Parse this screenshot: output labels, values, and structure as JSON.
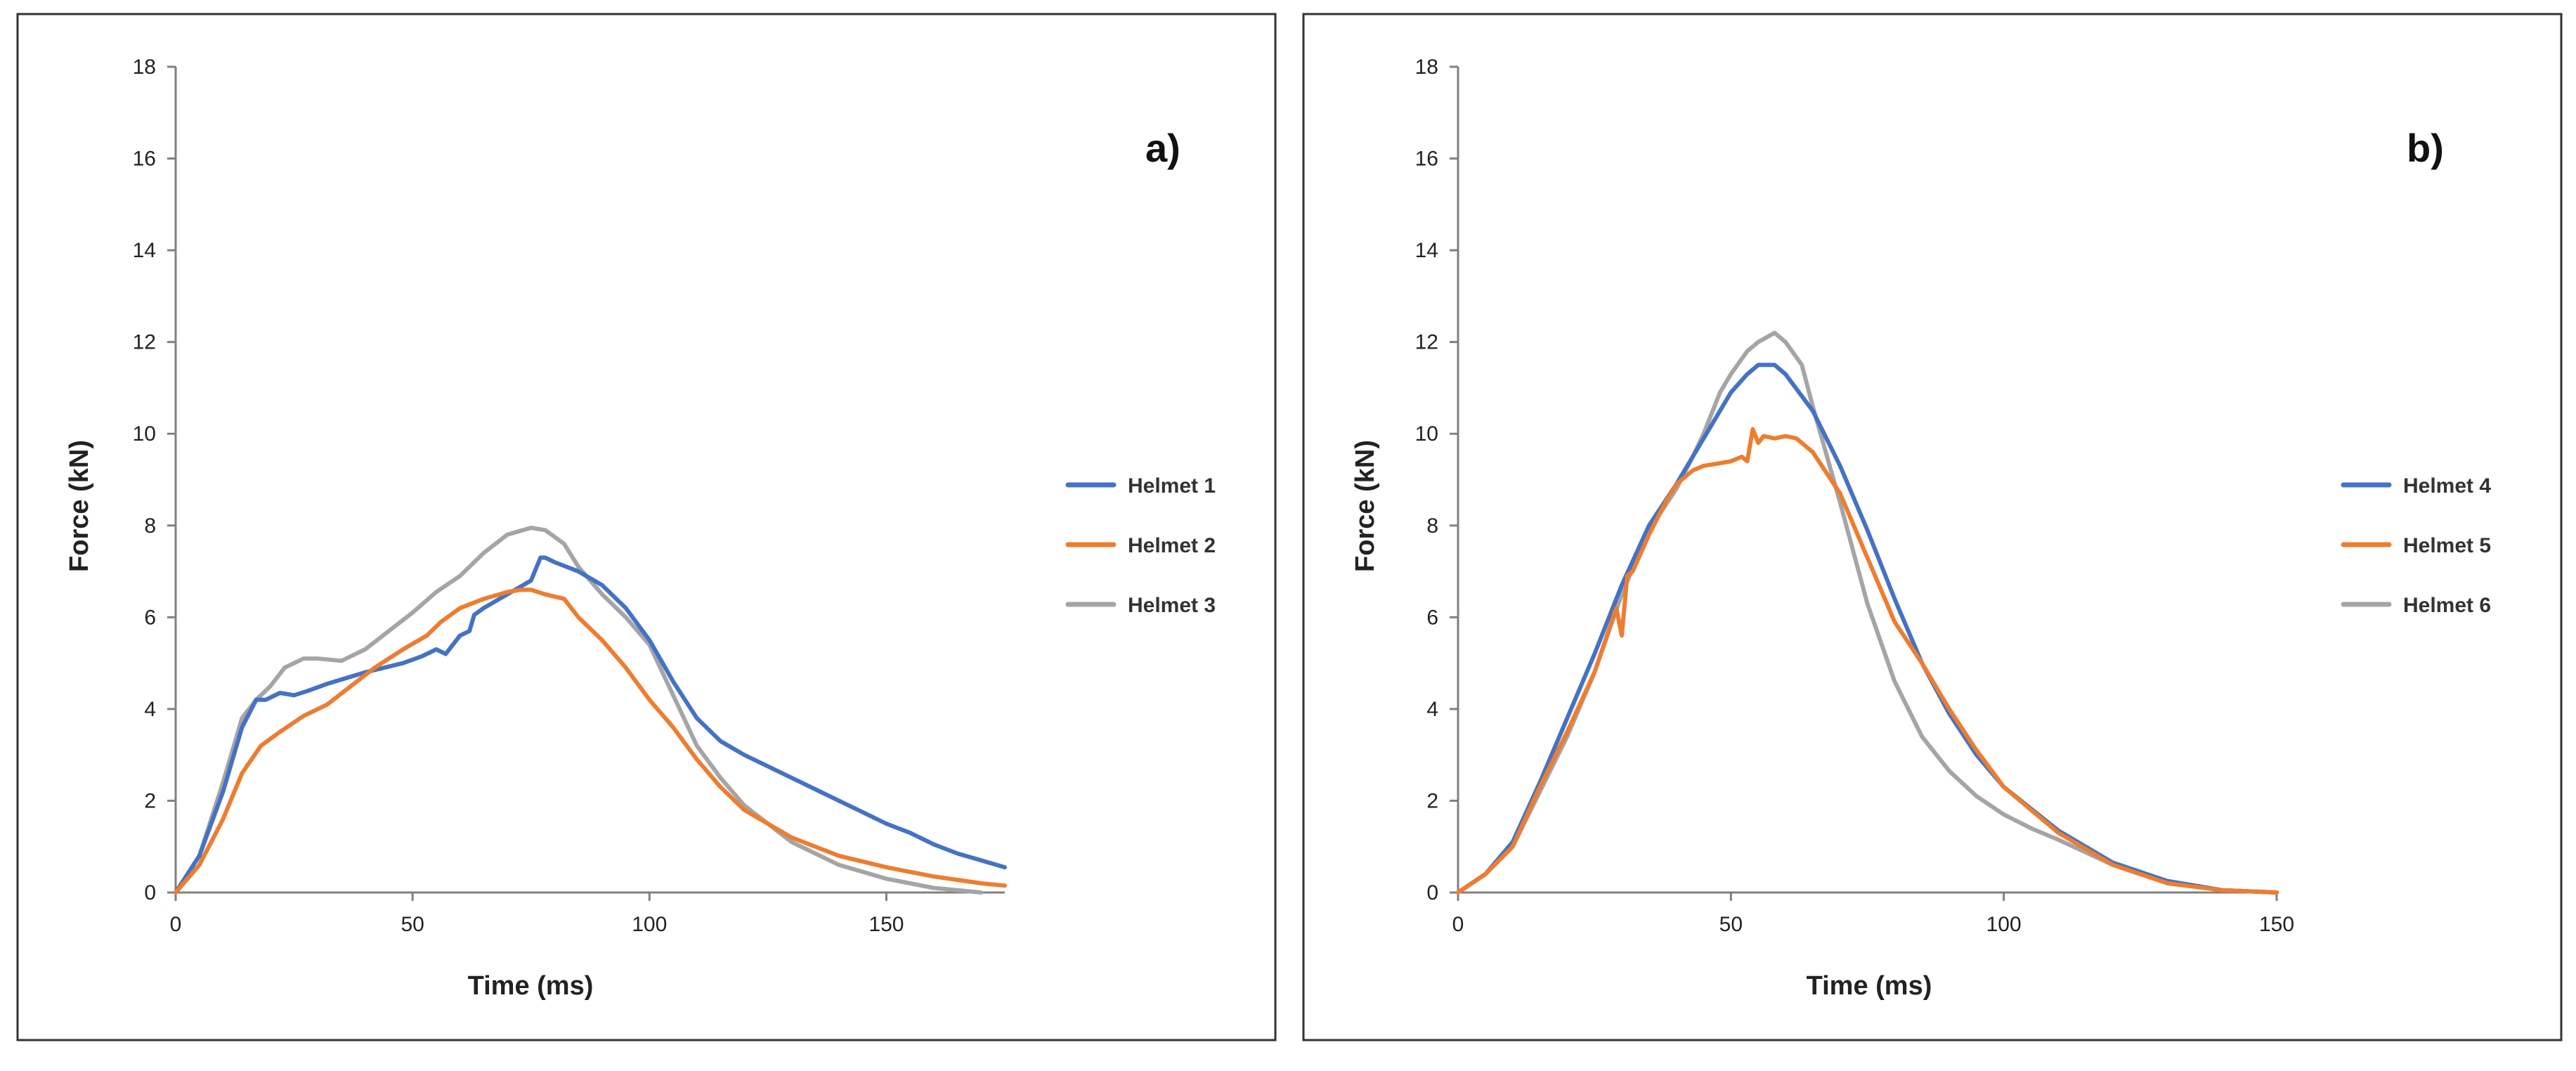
{
  "chart_data": [
    {
      "type": "line",
      "panel_label": "a)",
      "xlabel": "Time (ms)",
      "ylabel": "Force (kN)",
      "xlim": [
        0,
        175
      ],
      "ylim": [
        0,
        18
      ],
      "xticks": [
        0,
        50,
        100,
        150
      ],
      "yticks": [
        0,
        2,
        4,
        6,
        8,
        10,
        12,
        14,
        16,
        18
      ],
      "legend_position": "right",
      "series": [
        {
          "name": "Helmet 1",
          "color": "#4472C4",
          "x": [
            0,
            5,
            10,
            14,
            17,
            19,
            22,
            25,
            28,
            32,
            40,
            48,
            52,
            55,
            57,
            60,
            62,
            63,
            65,
            70,
            75,
            77,
            78,
            80,
            85,
            90,
            95,
            100,
            105,
            110,
            115,
            120,
            130,
            140,
            150,
            155,
            160,
            165,
            170,
            175
          ],
          "y": [
            0,
            0.8,
            2.2,
            3.6,
            4.2,
            4.2,
            4.35,
            4.3,
            4.4,
            4.55,
            4.8,
            5.0,
            5.15,
            5.3,
            5.2,
            5.6,
            5.7,
            6.05,
            6.2,
            6.5,
            6.8,
            7.3,
            7.3,
            7.2,
            7.0,
            6.7,
            6.2,
            5.5,
            4.6,
            3.8,
            3.3,
            3.0,
            2.5,
            2.0,
            1.5,
            1.3,
            1.05,
            0.85,
            0.7,
            0.55
          ]
        },
        {
          "name": "Helmet 2",
          "color": "#ED7D31",
          "x": [
            0,
            5,
            10,
            14,
            18,
            22,
            27,
            32,
            37,
            42,
            48,
            53,
            56,
            60,
            65,
            70,
            73,
            75,
            78,
            82,
            85,
            90,
            95,
            100,
            105,
            110,
            115,
            120,
            130,
            140,
            150,
            160,
            170,
            175
          ],
          "y": [
            0,
            0.6,
            1.6,
            2.6,
            3.2,
            3.5,
            3.85,
            4.1,
            4.5,
            4.9,
            5.3,
            5.6,
            5.9,
            6.2,
            6.4,
            6.55,
            6.6,
            6.6,
            6.5,
            6.4,
            6.0,
            5.5,
            4.9,
            4.2,
            3.6,
            2.9,
            2.3,
            1.8,
            1.2,
            0.8,
            0.55,
            0.35,
            0.2,
            0.15
          ]
        },
        {
          "name": "Helmet 3",
          "color": "#A5A5A5",
          "x": [
            0,
            5,
            10,
            14,
            17,
            20,
            23,
            27,
            30,
            35,
            40,
            45,
            50,
            55,
            60,
            65,
            70,
            75,
            78,
            82,
            85,
            90,
            95,
            100,
            105,
            110,
            115,
            120,
            130,
            140,
            150,
            160,
            165,
            170
          ],
          "y": [
            0,
            0.8,
            2.4,
            3.8,
            4.2,
            4.5,
            4.9,
            5.1,
            5.1,
            5.05,
            5.3,
            5.7,
            6.1,
            6.55,
            6.9,
            7.4,
            7.8,
            7.95,
            7.9,
            7.6,
            7.1,
            6.5,
            6.0,
            5.4,
            4.3,
            3.2,
            2.5,
            1.9,
            1.1,
            0.6,
            0.3,
            0.1,
            0.05,
            0
          ]
        }
      ]
    },
    {
      "type": "line",
      "panel_label": "b)",
      "xlabel": "Time (ms)",
      "ylabel": "Force (kN)",
      "xlim": [
        0,
        150
      ],
      "ylim": [
        0,
        18
      ],
      "xticks": [
        0,
        50,
        100,
        150
      ],
      "yticks": [
        0,
        2,
        4,
        6,
        8,
        10,
        12,
        14,
        16,
        18
      ],
      "legend_position": "right",
      "series": [
        {
          "name": "Helmet 4",
          "color": "#4472C4",
          "x": [
            0,
            5,
            10,
            15,
            20,
            25,
            30,
            35,
            40,
            45,
            50,
            53,
            55,
            58,
            60,
            65,
            70,
            75,
            80,
            85,
            90,
            95,
            100,
            110,
            120,
            130,
            140,
            150
          ],
          "y": [
            0,
            0.4,
            1.1,
            2.4,
            3.8,
            5.2,
            6.7,
            8.0,
            8.9,
            9.9,
            10.9,
            11.3,
            11.5,
            11.5,
            11.3,
            10.5,
            9.3,
            7.9,
            6.4,
            5.0,
            3.9,
            3.0,
            2.3,
            1.35,
            0.65,
            0.25,
            0.05,
            0
          ]
        },
        {
          "name": "Helmet 5",
          "color": "#ED7D31",
          "x": [
            0,
            5,
            10,
            15,
            20,
            25,
            29,
            30,
            31,
            32,
            35,
            38,
            40,
            43,
            45,
            50,
            52,
            53,
            54,
            55,
            56,
            58,
            60,
            62,
            65,
            70,
            75,
            80,
            85,
            90,
            95,
            100,
            110,
            120,
            130,
            140,
            150
          ],
          "y": [
            0,
            0.4,
            1.0,
            2.3,
            3.5,
            4.8,
            6.2,
            5.6,
            6.9,
            7.0,
            7.8,
            8.5,
            8.9,
            9.2,
            9.3,
            9.4,
            9.5,
            9.4,
            10.1,
            9.8,
            9.95,
            9.9,
            9.95,
            9.9,
            9.6,
            8.7,
            7.3,
            5.9,
            5.0,
            4.0,
            3.1,
            2.3,
            1.3,
            0.6,
            0.2,
            0.05,
            0
          ]
        },
        {
          "name": "Helmet 6",
          "color": "#A5A5A5",
          "x": [
            0,
            5,
            10,
            15,
            20,
            25,
            30,
            35,
            40,
            43,
            45,
            48,
            50,
            53,
            55,
            58,
            60,
            63,
            65,
            70,
            75,
            80,
            85,
            90,
            95,
            100,
            105,
            110,
            120,
            130,
            140,
            150
          ],
          "y": [
            0,
            0.4,
            1.0,
            2.2,
            3.4,
            4.8,
            6.5,
            7.9,
            8.8,
            9.5,
            10.0,
            10.9,
            11.3,
            11.8,
            12.0,
            12.2,
            12.0,
            11.5,
            10.6,
            8.5,
            6.3,
            4.6,
            3.4,
            2.65,
            2.1,
            1.7,
            1.4,
            1.15,
            0.6,
            0.25,
            0.05,
            0
          ]
        }
      ]
    }
  ]
}
